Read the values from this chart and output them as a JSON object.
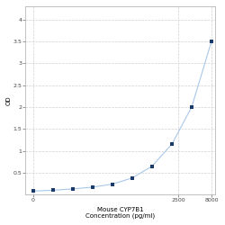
{
  "title_line1": "Mouse CYP7B1",
  "title_line2": "Concentration (pg/ml)",
  "ylabel": "OD",
  "x_values": [
    15.625,
    31.25,
    62.5,
    125,
    250,
    500,
    1000,
    2000,
    4000,
    8000
  ],
  "y_values": [
    0.08,
    0.1,
    0.13,
    0.17,
    0.24,
    0.38,
    0.65,
    1.15,
    2.0,
    3.5
  ],
  "xlim_log": [
    12,
    9000
  ],
  "ylim": [
    0,
    4.3
  ],
  "yticks": [
    0.5,
    1.0,
    1.5,
    2.0,
    2.5,
    3.0,
    3.5,
    4.0
  ],
  "ytick_labels": [
    "0.5",
    "1",
    "1.5",
    "2",
    "2.5",
    "3",
    "3.5",
    "4"
  ],
  "xtick_positions": [
    15.625,
    2500,
    8000
  ],
  "xtick_labels": [
    "0",
    "2500",
    "8000"
  ],
  "line_color": "#a8c8e8",
  "marker_color": "#1a3a6b",
  "marker_size": 3.5,
  "bg_color": "#ffffff",
  "grid_color": "#d0d0d0",
  "tick_fontsize": 4.5,
  "axis_label_fontsize": 5.0,
  "xlabel_fontsize": 5.0
}
